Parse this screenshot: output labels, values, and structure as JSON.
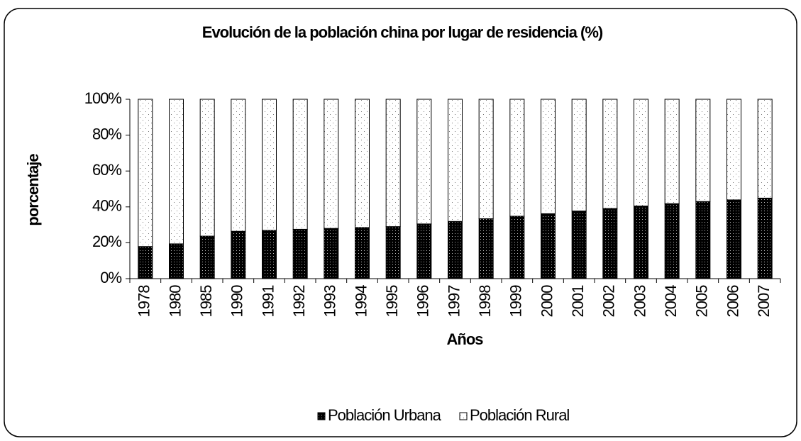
{
  "chart_data": {
    "type": "stacked_bar",
    "title": "Evolución de la población china por lugar de residencia (%)",
    "x_label": "Años",
    "y_label": "porcentaje",
    "categories": [
      "1978",
      "1980",
      "1985",
      "1990",
      "1991",
      "1992",
      "1993",
      "1994",
      "1995",
      "1996",
      "1997",
      "1998",
      "1999",
      "2000",
      "2001",
      "2002",
      "2003",
      "2004",
      "2005",
      "2006",
      "2007"
    ],
    "series": [
      {
        "name": "Población Urbana",
        "color": "#000000",
        "values": [
          17.9,
          19.4,
          23.7,
          26.4,
          26.9,
          27.5,
          28.0,
          28.5,
          29.0,
          30.5,
          31.9,
          33.4,
          34.8,
          36.2,
          37.7,
          39.1,
          40.5,
          41.8,
          43.0,
          43.9,
          44.9
        ]
      },
      {
        "name": "Población Rural",
        "color": "#ffffff",
        "values": [
          82.1,
          80.6,
          76.3,
          73.6,
          73.1,
          72.5,
          72.0,
          71.5,
          71.0,
          69.5,
          68.1,
          66.6,
          65.2,
          63.8,
          62.3,
          60.9,
          59.5,
          58.2,
          57.0,
          56.1,
          55.1
        ]
      }
    ],
    "ylim": [
      0,
      100
    ],
    "yticks": [
      {
        "value": 0,
        "label": "0%"
      },
      {
        "value": 20,
        "label": "20%"
      },
      {
        "value": 40,
        "label": "40%"
      },
      {
        "value": 60,
        "label": "60%"
      },
      {
        "value": 80,
        "label": "80%"
      },
      {
        "value": 100,
        "label": "100%"
      }
    ],
    "legend": "bottom"
  }
}
